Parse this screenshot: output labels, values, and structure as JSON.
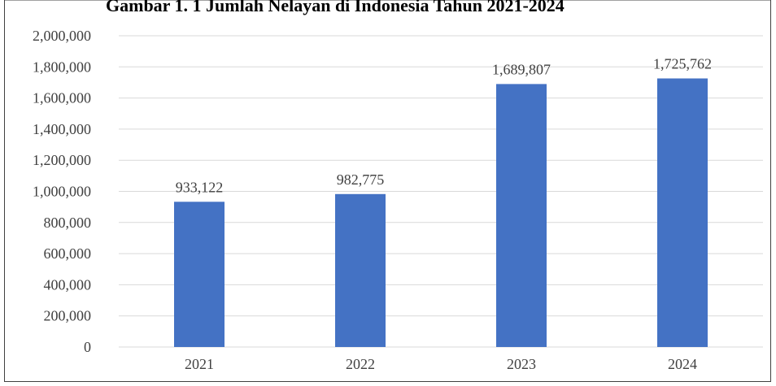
{
  "chart_data": {
    "type": "bar",
    "title": "Gambar 1. 1 Jumlah Nelayan di Indonesia Tahun 2021-2024",
    "categories": [
      "2021",
      "2022",
      "2023",
      "2024"
    ],
    "values": [
      933122,
      982775,
      1689807,
      1725762
    ],
    "value_labels": [
      "933,122",
      "982,775",
      "1,689,807",
      "1,725,762"
    ],
    "color": "#4472c4",
    "ylim": [
      0,
      2000000
    ],
    "yticks": [
      0,
      {
        "value": 200000,
        "label": "200,000"
      },
      {
        "value": 400000,
        "label": "400,000"
      },
      {
        "value": 600000,
        "label": "600,000"
      },
      {
        "value": 800000,
        "label": "800,000"
      },
      {
        "value": 1000000,
        "label": "1,000,000"
      },
      {
        "value": 1200000,
        "label": "1,200,000"
      },
      {
        "value": 1400000,
        "label": "1,400,000"
      },
      {
        "value": 1600000,
        "label": "1,600,000"
      },
      {
        "value": 1800000,
        "label": "1,800,000"
      },
      {
        "value": 2000000,
        "label": "2,000,000"
      }
    ],
    "grid": true
  }
}
